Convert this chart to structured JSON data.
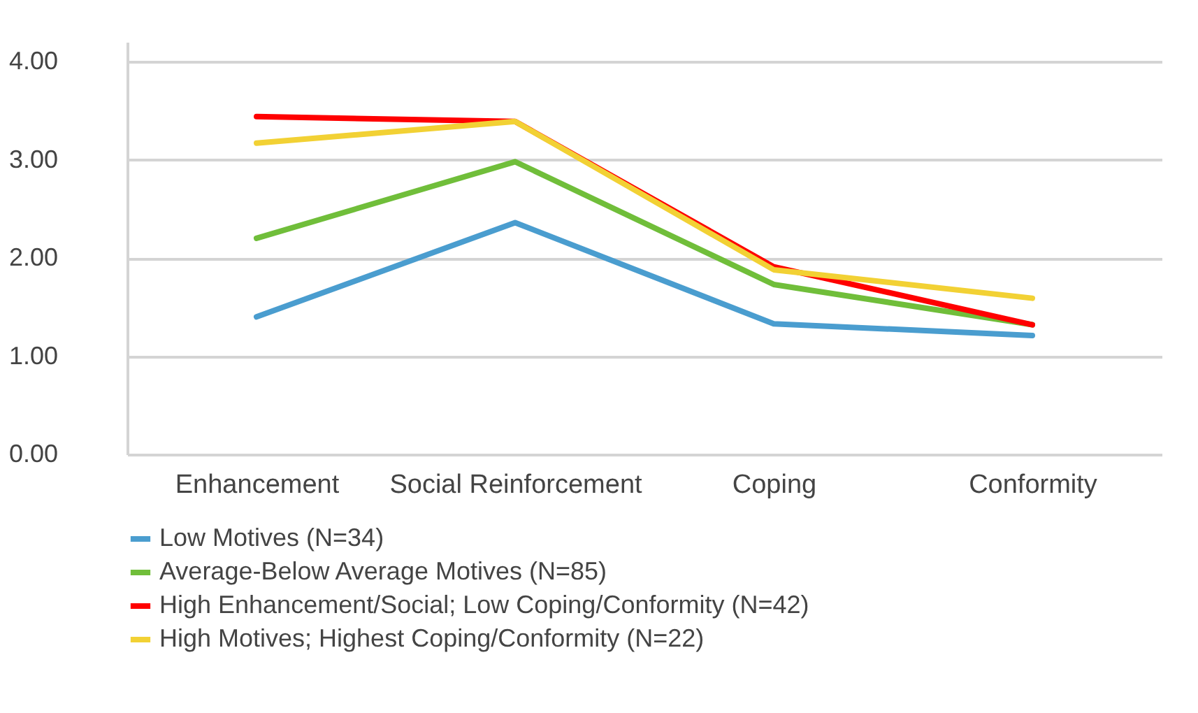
{
  "chart_data": {
    "type": "line",
    "categories": [
      "Enhancement",
      "Social Reinforcement",
      "Coping",
      "Conformity"
    ],
    "series": [
      {
        "name": "Low Motives (N=34)",
        "color": "#4a9dcf",
        "values": [
          1.4,
          2.36,
          1.33,
          1.21
        ]
      },
      {
        "name": "Average-Below Average Motives (N=85)",
        "color": "#70be3a",
        "values": [
          2.2,
          2.98,
          1.73,
          1.32
        ]
      },
      {
        "name": "High Enhancement/Social; Low Coping/Conformity (N=42)",
        "color": "#ff0000",
        "values": [
          3.44,
          3.39,
          1.91,
          1.32
        ]
      },
      {
        "name": "High Motives; Highest Coping/Conformity (N=22)",
        "color": "#f2d134",
        "values": [
          3.17,
          3.39,
          1.88,
          1.59
        ]
      }
    ],
    "ylim": [
      0,
      4.2
    ],
    "yticks": [
      {
        "value": 0,
        "label": "0.00"
      },
      {
        "value": 1,
        "label": "1.00"
      },
      {
        "value": 2,
        "label": "2.00"
      },
      {
        "value": 3,
        "label": "3.00"
      },
      {
        "value": 4,
        "label": "4.00"
      }
    ],
    "grid": "y",
    "legend": "bottom",
    "marker": "none",
    "line_style": "solid"
  }
}
